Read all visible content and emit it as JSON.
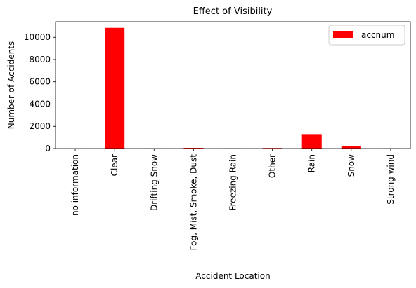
{
  "chart_data": {
    "type": "bar",
    "title": "Effect of Visibility",
    "xlabel": "Accident Location",
    "ylabel": "Number of Accidents",
    "categories": [
      "no information",
      "Clear",
      "Drifting Snow",
      "Fog, Mist, Smoke, Dust",
      "Freezing Rain",
      "Other",
      "Rain",
      "Snow",
      "Strong wind"
    ],
    "series": [
      {
        "name": "accnum",
        "values": [
          5,
          10850,
          8,
          60,
          10,
          50,
          1300,
          250,
          12
        ],
        "color": "#ff0000"
      }
    ],
    "yticks": [
      0,
      2000,
      4000,
      6000,
      8000,
      10000
    ],
    "ylim": [
      0,
      11400
    ],
    "grid": false,
    "legend_position": "top-right"
  }
}
